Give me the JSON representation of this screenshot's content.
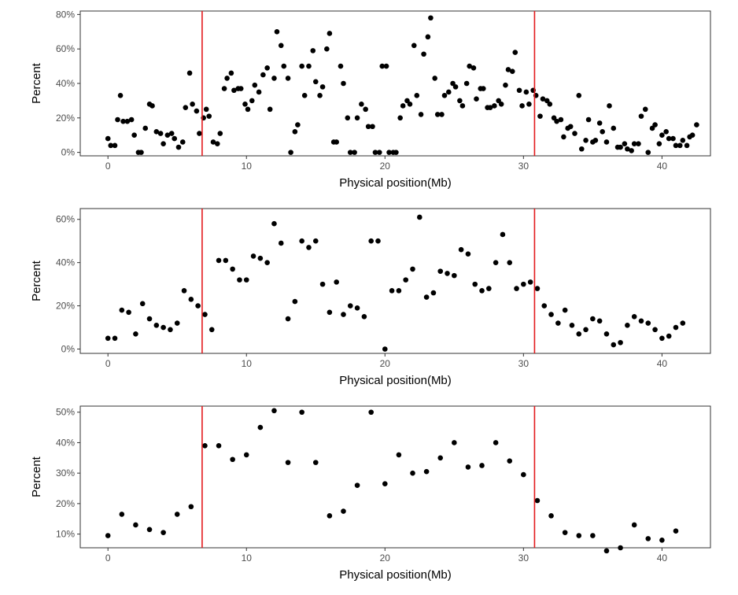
{
  "chart_data": [
    {
      "type": "scatter",
      "xlabel": "Physical position(Mb)",
      "ylabel": "Percent",
      "xlim": [
        -2,
        43.5
      ],
      "ylim": [
        -2,
        82
      ],
      "x_ticks": [
        0,
        10,
        20,
        30,
        40
      ],
      "y_ticks": [
        0,
        20,
        40,
        60,
        80
      ],
      "y_tick_labels": [
        "0%",
        "20%",
        "40%",
        "60%",
        "80%"
      ],
      "vlines": [
        6.8,
        30.8
      ],
      "vline_color": "#e31a1c",
      "point_color": "#000000",
      "grid": false,
      "points": [
        [
          0,
          8
        ],
        [
          0.2,
          4
        ],
        [
          0.5,
          4
        ],
        [
          0.7,
          19
        ],
        [
          0.9,
          33
        ],
        [
          1.1,
          18
        ],
        [
          1.4,
          18
        ],
        [
          1.7,
          19
        ],
        [
          1.9,
          10
        ],
        [
          2.2,
          0
        ],
        [
          2.4,
          0
        ],
        [
          2.7,
          14
        ],
        [
          3,
          28
        ],
        [
          3.2,
          27
        ],
        [
          3.5,
          12
        ],
        [
          3.8,
          11
        ],
        [
          4,
          5
        ],
        [
          4.3,
          10
        ],
        [
          4.6,
          11
        ],
        [
          4.8,
          8
        ],
        [
          5.1,
          3
        ],
        [
          5.4,
          6
        ],
        [
          5.6,
          26
        ],
        [
          5.9,
          46
        ],
        [
          6.1,
          28
        ],
        [
          6.4,
          24
        ],
        [
          6.6,
          11
        ],
        [
          6.9,
          20
        ],
        [
          7.1,
          25
        ],
        [
          7.3,
          21
        ],
        [
          7.6,
          6
        ],
        [
          7.9,
          5
        ],
        [
          8.1,
          11
        ],
        [
          8.4,
          37
        ],
        [
          8.6,
          43
        ],
        [
          8.9,
          46
        ],
        [
          9.1,
          36
        ],
        [
          9.4,
          37
        ],
        [
          9.6,
          37
        ],
        [
          9.9,
          28
        ],
        [
          10.1,
          25
        ],
        [
          10.4,
          30
        ],
        [
          10.6,
          39
        ],
        [
          10.9,
          35
        ],
        [
          11.2,
          45
        ],
        [
          11.5,
          49
        ],
        [
          11.7,
          25
        ],
        [
          12,
          43
        ],
        [
          12.2,
          70
        ],
        [
          12.5,
          62
        ],
        [
          12.7,
          50
        ],
        [
          13,
          43
        ],
        [
          13.2,
          0
        ],
        [
          13.5,
          12
        ],
        [
          13.7,
          16
        ],
        [
          14,
          50
        ],
        [
          14.2,
          33
        ],
        [
          14.5,
          50
        ],
        [
          14.8,
          59
        ],
        [
          15,
          41
        ],
        [
          15.3,
          33
        ],
        [
          15.5,
          38
        ],
        [
          15.8,
          60
        ],
        [
          16,
          69
        ],
        [
          16.3,
          6
        ],
        [
          16.5,
          6
        ],
        [
          16.8,
          50
        ],
        [
          17,
          40
        ],
        [
          17.3,
          20
        ],
        [
          17.5,
          0
        ],
        [
          17.8,
          0
        ],
        [
          18,
          20
        ],
        [
          18.3,
          28
        ],
        [
          18.6,
          25
        ],
        [
          18.8,
          15
        ],
        [
          19.1,
          15
        ],
        [
          19.3,
          0
        ],
        [
          19.6,
          0
        ],
        [
          19.8,
          50
        ],
        [
          20.1,
          50
        ],
        [
          20.3,
          0
        ],
        [
          20.6,
          0
        ],
        [
          20.8,
          0
        ],
        [
          21.1,
          20
        ],
        [
          21.3,
          27
        ],
        [
          21.6,
          30
        ],
        [
          21.8,
          28
        ],
        [
          22.1,
          62
        ],
        [
          22.3,
          33
        ],
        [
          22.6,
          22
        ],
        [
          22.8,
          57
        ],
        [
          23.1,
          67
        ],
        [
          23.3,
          78
        ],
        [
          23.6,
          43
        ],
        [
          23.8,
          22
        ],
        [
          24.1,
          22
        ],
        [
          24.3,
          33
        ],
        [
          24.6,
          35
        ],
        [
          24.9,
          40
        ],
        [
          25.1,
          38
        ],
        [
          25.4,
          30
        ],
        [
          25.6,
          27
        ],
        [
          25.9,
          40
        ],
        [
          26.1,
          50
        ],
        [
          26.4,
          49
        ],
        [
          26.6,
          31
        ],
        [
          26.9,
          37
        ],
        [
          27.1,
          37
        ],
        [
          27.4,
          26
        ],
        [
          27.6,
          26
        ],
        [
          27.9,
          27
        ],
        [
          28.2,
          30
        ],
        [
          28.4,
          28
        ],
        [
          28.7,
          39
        ],
        [
          28.9,
          48
        ],
        [
          29.2,
          47
        ],
        [
          29.4,
          58
        ],
        [
          29.7,
          36
        ],
        [
          29.9,
          27
        ],
        [
          30.2,
          35
        ],
        [
          30.4,
          28
        ],
        [
          30.7,
          36
        ],
        [
          30.9,
          33
        ],
        [
          31.2,
          21
        ],
        [
          31.4,
          31
        ],
        [
          31.7,
          30
        ],
        [
          31.9,
          28
        ],
        [
          32.2,
          20
        ],
        [
          32.4,
          18
        ],
        [
          32.7,
          19
        ],
        [
          32.9,
          9
        ],
        [
          33.2,
          14
        ],
        [
          33.4,
          15
        ],
        [
          33.7,
          11
        ],
        [
          34,
          33
        ],
        [
          34.2,
          2
        ],
        [
          34.5,
          7
        ],
        [
          34.7,
          19
        ],
        [
          35,
          6
        ],
        [
          35.2,
          7
        ],
        [
          35.5,
          17
        ],
        [
          35.7,
          12
        ],
        [
          36,
          6
        ],
        [
          36.2,
          27
        ],
        [
          36.5,
          14
        ],
        [
          36.8,
          3
        ],
        [
          37,
          3
        ],
        [
          37.3,
          5
        ],
        [
          37.5,
          2
        ],
        [
          37.8,
          1
        ],
        [
          38,
          5
        ],
        [
          38.3,
          5
        ],
        [
          38.5,
          21
        ],
        [
          38.8,
          25
        ],
        [
          39,
          0
        ],
        [
          39.3,
          14
        ],
        [
          39.5,
          16
        ],
        [
          39.8,
          5
        ],
        [
          40,
          10
        ],
        [
          40.3,
          12
        ],
        [
          40.5,
          8
        ],
        [
          40.8,
          8
        ],
        [
          41,
          4
        ],
        [
          41.3,
          4
        ],
        [
          41.5,
          7
        ],
        [
          41.8,
          4
        ],
        [
          42,
          9
        ],
        [
          42.2,
          10
        ],
        [
          42.5,
          16
        ]
      ]
    },
    {
      "type": "scatter",
      "xlabel": "Physical position(Mb)",
      "ylabel": "Percent",
      "xlim": [
        -2,
        43.5
      ],
      "ylim": [
        -2,
        65
      ],
      "x_ticks": [
        0,
        10,
        20,
        30,
        40
      ],
      "y_ticks": [
        0,
        20,
        40,
        60
      ],
      "y_tick_labels": [
        "0%",
        "20%",
        "40%",
        "60%"
      ],
      "vlines": [
        6.8,
        30.8
      ],
      "vline_color": "#e31a1c",
      "point_color": "#000000",
      "grid": false,
      "points": [
        [
          0,
          5
        ],
        [
          0.5,
          5
        ],
        [
          1,
          18
        ],
        [
          1.5,
          17
        ],
        [
          2,
          7
        ],
        [
          2.5,
          21
        ],
        [
          3,
          14
        ],
        [
          3.5,
          11
        ],
        [
          4,
          10
        ],
        [
          4.5,
          9
        ],
        [
          5,
          12
        ],
        [
          5.5,
          27
        ],
        [
          6,
          23
        ],
        [
          6.5,
          20
        ],
        [
          7,
          16
        ],
        [
          7.5,
          9
        ],
        [
          8,
          41
        ],
        [
          8.5,
          41
        ],
        [
          9,
          37
        ],
        [
          9.5,
          32
        ],
        [
          10,
          32
        ],
        [
          10.5,
          43
        ],
        [
          11,
          42
        ],
        [
          11.5,
          40
        ],
        [
          12,
          58
        ],
        [
          12.5,
          49
        ],
        [
          13,
          14
        ],
        [
          13.5,
          22
        ],
        [
          14,
          50
        ],
        [
          14.5,
          47
        ],
        [
          15,
          50
        ],
        [
          15.5,
          30
        ],
        [
          16,
          17
        ],
        [
          16.5,
          31
        ],
        [
          17,
          16
        ],
        [
          17.5,
          20
        ],
        [
          18,
          19
        ],
        [
          18.5,
          15
        ],
        [
          19,
          50
        ],
        [
          19.5,
          50
        ],
        [
          20,
          0
        ],
        [
          20.5,
          27
        ],
        [
          21,
          27
        ],
        [
          21.5,
          32
        ],
        [
          22,
          37
        ],
        [
          22.5,
          61
        ],
        [
          23,
          24
        ],
        [
          23.5,
          26
        ],
        [
          24,
          36
        ],
        [
          24.5,
          35
        ],
        [
          25,
          34
        ],
        [
          25.5,
          46
        ],
        [
          26,
          44
        ],
        [
          26.5,
          30
        ],
        [
          27,
          27
        ],
        [
          27.5,
          28
        ],
        [
          28,
          40
        ],
        [
          28.5,
          53
        ],
        [
          29,
          40
        ],
        [
          29.5,
          28
        ],
        [
          30,
          30
        ],
        [
          30.5,
          31
        ],
        [
          31,
          28
        ],
        [
          31.5,
          20
        ],
        [
          32,
          16
        ],
        [
          32.5,
          12
        ],
        [
          33,
          18
        ],
        [
          33.5,
          11
        ],
        [
          34,
          7
        ],
        [
          34.5,
          9
        ],
        [
          35,
          14
        ],
        [
          35.5,
          13
        ],
        [
          36,
          7
        ],
        [
          36.5,
          2
        ],
        [
          37,
          3
        ],
        [
          37.5,
          11
        ],
        [
          38,
          15
        ],
        [
          38.5,
          13
        ],
        [
          39,
          12
        ],
        [
          39.5,
          9
        ],
        [
          40,
          5
        ],
        [
          40.5,
          6
        ],
        [
          41,
          10
        ],
        [
          41.5,
          12
        ]
      ]
    },
    {
      "type": "scatter",
      "xlabel": "Physical position(Mb)",
      "ylabel": "Percent",
      "xlim": [
        -2,
        43.5
      ],
      "ylim": [
        5.5,
        52
      ],
      "x_ticks": [
        0,
        10,
        20,
        30,
        40
      ],
      "y_ticks": [
        10,
        20,
        30,
        40,
        50
      ],
      "y_tick_labels": [
        "10%",
        "20%",
        "30%",
        "40%",
        "50%"
      ],
      "vlines": [
        6.8,
        30.8
      ],
      "vline_color": "#e31a1c",
      "point_color": "#000000",
      "grid": false,
      "points": [
        [
          0,
          9.5
        ],
        [
          1,
          16.5
        ],
        [
          2,
          13
        ],
        [
          3,
          11.5
        ],
        [
          4,
          10.5
        ],
        [
          5,
          16.5
        ],
        [
          6,
          19
        ],
        [
          7,
          39
        ],
        [
          8,
          39
        ],
        [
          9,
          34.5
        ],
        [
          10,
          36
        ],
        [
          11,
          45
        ],
        [
          12,
          50.5
        ],
        [
          13,
          33.5
        ],
        [
          14,
          50
        ],
        [
          15,
          33.5
        ],
        [
          16,
          16
        ],
        [
          17,
          17.5
        ],
        [
          18,
          26
        ],
        [
          19,
          50
        ],
        [
          20,
          26.5
        ],
        [
          21,
          36
        ],
        [
          22,
          30
        ],
        [
          23,
          30.5
        ],
        [
          24,
          35
        ],
        [
          25,
          40
        ],
        [
          26,
          32
        ],
        [
          27,
          32.5
        ],
        [
          28,
          40
        ],
        [
          29,
          34
        ],
        [
          30,
          29.5
        ],
        [
          31,
          21
        ],
        [
          32,
          16
        ],
        [
          33,
          10.5
        ],
        [
          34,
          9.5
        ],
        [
          35,
          9.5
        ],
        [
          36,
          4.5
        ],
        [
          37,
          5.5
        ],
        [
          38,
          13
        ],
        [
          39,
          8.5
        ],
        [
          40,
          8
        ],
        [
          41,
          11
        ]
      ]
    }
  ]
}
